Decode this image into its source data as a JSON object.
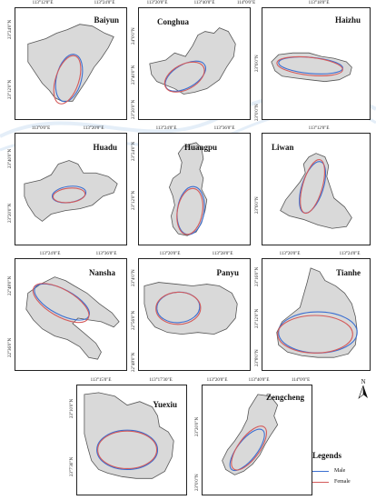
{
  "colors": {
    "male": "#3b6fd1",
    "female": "#d45a5a",
    "district_fill": "#d9d9d9",
    "district_stroke": "#555555",
    "frame": "#222222"
  },
  "panels": [
    {
      "name": "Baiyun",
      "x_ticks": [
        "113°12'0\"E",
        "113°24'0\"E"
      ],
      "y_ticks": [
        "23°24'0\"N",
        "23°12'0\"N"
      ]
    },
    {
      "name": "Conghua",
      "x_ticks": [
        "113°20'0\"E",
        "113°40'0\"E",
        "114°0'0\"E"
      ],
      "y_ticks": [
        "24°0'0\"N",
        "23°40'0\"N",
        "23°20'0\"N"
      ]
    },
    {
      "name": "Haizhu",
      "x_ticks": [
        "113°18'0\"E"
      ],
      "y_ticks": [
        "23°6'0\"N",
        "23°0'0\"N"
      ]
    },
    {
      "name": "Huadu",
      "x_ticks": [
        "113°0'0\"E",
        "113°20'0\"E"
      ],
      "y_ticks": [
        "23°40'0\"N",
        "23°20'0\"N"
      ]
    },
    {
      "name": "Huangpu",
      "x_ticks": [
        "113°24'0\"E",
        "113°36'0\"E"
      ],
      "y_ticks": [
        "23°24'0\"N",
        "23°12'0\"N"
      ]
    },
    {
      "name": "Liwan",
      "x_ticks": [
        "113°12'0\"E"
      ],
      "y_ticks": [
        "23°6'0\"N"
      ]
    },
    {
      "name": "Nansha",
      "x_ticks": [
        "113°24'0\"E",
        "113°36'0\"E"
      ],
      "y_ticks": [
        "22°48'0\"N",
        "22°36'0\"N"
      ]
    },
    {
      "name": "Panyu",
      "x_ticks": [
        "113°20'0\"E",
        "113°28'0\"E"
      ],
      "y_ticks": [
        "23°4'0\"N",
        "22°56'0\"N",
        "22°48'0\"N"
      ]
    },
    {
      "name": "Tianhe",
      "x_ticks": [
        "113°20'0\"E",
        "113°24'0\"E"
      ],
      "y_ticks": [
        "23°16'0\"N",
        "23°12'0\"N",
        "23°8'0\"N"
      ]
    },
    {
      "name": "Yuexiu",
      "x_ticks": [
        "113°15'0\"E",
        "113°17'30\"E"
      ],
      "y_ticks": [
        "23°10'0\"N",
        "23°7'30\"N"
      ]
    },
    {
      "name": "Zengcheng",
      "x_ticks": [
        "113°20'0\"E",
        "113°40'0\"E",
        "114°0'0\"E"
      ],
      "y_ticks": [
        "23°20'0\"N",
        "23°0'0\"N"
      ]
    }
  ],
  "legend": {
    "title": "Legends",
    "items": [
      {
        "label": "Male",
        "color": "#3b6fd1"
      },
      {
        "label": "Female",
        "color": "#d45a5a"
      }
    ]
  },
  "north_arrow": {
    "label": "N"
  }
}
